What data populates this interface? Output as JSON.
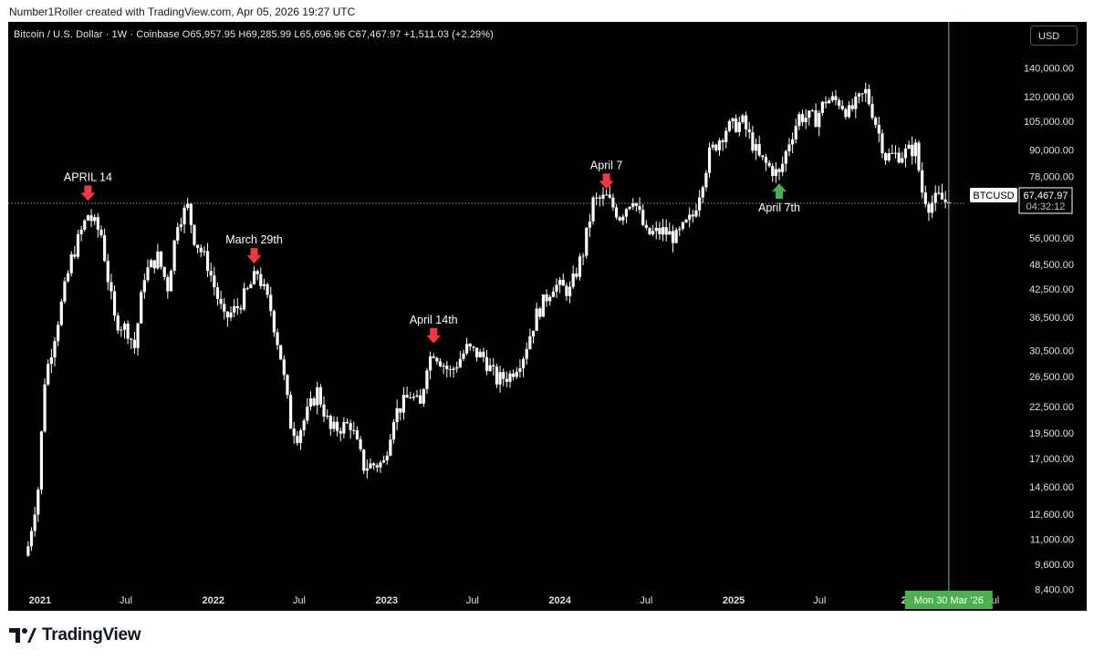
{
  "header": {
    "credit": "Number1Roller created with TradingView.com, Apr 05, 2026 19:27 UTC"
  },
  "symbol_bar": {
    "text": "Bitcoin / U.S. Dollar · 1W · Coinbase  O65,957.95  H69,285.99  L65,696.96  C67,467.97  +1,511.03 (+2.29%)"
  },
  "currency_button": "USD",
  "price_tag": {
    "symbol": "BTCUSD",
    "price": "67,467.97",
    "countdown": "04:32:12"
  },
  "date_tag": "Mon 30 Mar '26",
  "footer": {
    "brand": "TradingView"
  },
  "colors": {
    "background": "#000000",
    "candles": "#ffffff",
    "red_arrow": "#f23645",
    "green_arrow": "#4caf50",
    "vline": "#4caf50"
  },
  "chart_data": {
    "type": "candlestick",
    "timeframe": "1W",
    "scale": "log",
    "y_ticks": [
      140000,
      120000,
      105000,
      90000,
      78000,
      56000,
      48500,
      42500,
      36500,
      30500,
      26500,
      22500,
      19500,
      17000,
      14600,
      12600,
      11000,
      9600,
      8400
    ],
    "y_tick_labels": [
      "140,000.00",
      "120,000.00",
      "105,000.00",
      "90,000.00",
      "78,000.00",
      "56,000.00",
      "48,500.00",
      "42,500.00",
      "36,500.00",
      "30,500.00",
      "26,500.00",
      "22,500.00",
      "19,500.00",
      "17,000.00",
      "14,600.00",
      "12,600.00",
      "11,000.00",
      "9,600.00",
      "8,400.00"
    ],
    "x_ticks": [
      {
        "date": "2021-01-01",
        "label": "2021"
      },
      {
        "date": "2021-07-01",
        "label": "Jul"
      },
      {
        "date": "2022-01-01",
        "label": "2022"
      },
      {
        "date": "2022-07-01",
        "label": "Jul"
      },
      {
        "date": "2023-01-01",
        "label": "2023"
      },
      {
        "date": "2023-07-01",
        "label": "Jul"
      },
      {
        "date": "2024-01-01",
        "label": "2024"
      },
      {
        "date": "2024-07-01",
        "label": "Jul"
      },
      {
        "date": "2025-01-01",
        "label": "2025"
      },
      {
        "date": "2025-07-01",
        "label": "Jul"
      },
      {
        "date": "2026-01-01",
        "label": "20"
      },
      {
        "date": "2026-07-01",
        "label": "Jul"
      }
    ],
    "x_range": [
      "2020-10-26",
      "2026-08-10"
    ],
    "y_range": [
      7700,
      155000
    ],
    "last_price": 67467.97,
    "current_date": "2026-03-30",
    "close_path": [
      [
        "2020-12-07",
        10600
      ],
      [
        "2020-12-28",
        14500
      ],
      [
        "2021-01-11",
        26000
      ],
      [
        "2021-02-08",
        36000
      ],
      [
        "2021-03-08",
        50000
      ],
      [
        "2021-03-29",
        58000
      ],
      [
        "2021-04-12",
        63500
      ],
      [
        "2021-05-10",
        57000
      ],
      [
        "2021-05-24",
        45000
      ],
      [
        "2021-06-07",
        36000
      ],
      [
        "2021-07-05",
        34000
      ],
      [
        "2021-07-19",
        31000
      ],
      [
        "2021-08-09",
        46000
      ],
      [
        "2021-09-06",
        50500
      ],
      [
        "2021-09-27",
        43000
      ],
      [
        "2021-10-18",
        61500
      ],
      [
        "2021-11-08",
        66000
      ],
      [
        "2021-11-22",
        56000
      ],
      [
        "2021-12-20",
        48500
      ],
      [
        "2022-01-24",
        36000
      ],
      [
        "2022-02-21",
        38500
      ],
      [
        "2022-03-14",
        42000
      ],
      [
        "2022-04-04",
        46500
      ],
      [
        "2022-05-02",
        38000
      ],
      [
        "2022-05-23",
        29500
      ],
      [
        "2022-06-13",
        20500
      ],
      [
        "2022-06-27",
        19300
      ],
      [
        "2022-08-08",
        24500
      ],
      [
        "2022-09-05",
        19800
      ],
      [
        "2022-10-17",
        20500
      ],
      [
        "2022-11-14",
        16300
      ],
      [
        "2022-12-26",
        16600
      ],
      [
        "2023-01-16",
        21500
      ],
      [
        "2023-02-20",
        24000
      ],
      [
        "2023-03-13",
        22500
      ],
      [
        "2023-03-27",
        28500
      ],
      [
        "2023-04-10",
        30400
      ],
      [
        "2023-05-15",
        27000
      ],
      [
        "2023-06-19",
        30800
      ],
      [
        "2023-07-24",
        29400
      ],
      [
        "2023-08-21",
        26000
      ],
      [
        "2023-09-18",
        26700
      ],
      [
        "2023-10-16",
        29800
      ],
      [
        "2023-11-13",
        37000
      ],
      [
        "2023-12-18",
        43500
      ],
      [
        "2024-01-22",
        42000
      ],
      [
        "2024-02-19",
        52000
      ],
      [
        "2024-03-11",
        68000
      ],
      [
        "2024-04-08",
        69500
      ],
      [
        "2024-05-06",
        63000
      ],
      [
        "2024-06-03",
        70000
      ],
      [
        "2024-07-01",
        57000
      ],
      [
        "2024-08-05",
        58000
      ],
      [
        "2024-09-02",
        56000
      ],
      [
        "2024-10-07",
        63000
      ],
      [
        "2024-11-11",
        88000
      ],
      [
        "2024-12-16",
        101000
      ],
      [
        "2025-01-20",
        104500
      ],
      [
        "2025-02-24",
        86000
      ],
      [
        "2025-03-17",
        82000
      ],
      [
        "2025-04-07",
        78500
      ],
      [
        "2025-04-28",
        94500
      ],
      [
        "2025-05-19",
        108000
      ],
      [
        "2025-06-23",
        106500
      ],
      [
        "2025-07-14",
        118000
      ],
      [
        "2025-08-11",
        117000
      ],
      [
        "2025-09-01",
        110000
      ],
      [
        "2025-10-06",
        123000
      ],
      [
        "2025-10-20",
        111000
      ],
      [
        "2025-11-17",
        87000
      ],
      [
        "2025-12-22",
        88000
      ],
      [
        "2026-01-19",
        91000
      ],
      [
        "2026-02-02",
        72000
      ],
      [
        "2026-02-16",
        67000
      ],
      [
        "2026-03-09",
        69500
      ],
      [
        "2026-03-30",
        67467.97
      ]
    ],
    "annotations": [
      {
        "text": "APRIL 14",
        "date": "2021-04-12",
        "price": 68000,
        "direction": "down",
        "color": "red"
      },
      {
        "text": "March 29th",
        "date": "2022-03-28",
        "price": 48500,
        "direction": "down",
        "color": "red"
      },
      {
        "text": "April 14th",
        "date": "2023-04-10",
        "price": 31500,
        "direction": "down",
        "color": "red"
      },
      {
        "text": "April 7",
        "date": "2024-04-08",
        "price": 72500,
        "direction": "down",
        "color": "red"
      },
      {
        "text": "April 7th",
        "date": "2025-04-07",
        "price": 75500,
        "direction": "up",
        "color": "green"
      }
    ]
  }
}
